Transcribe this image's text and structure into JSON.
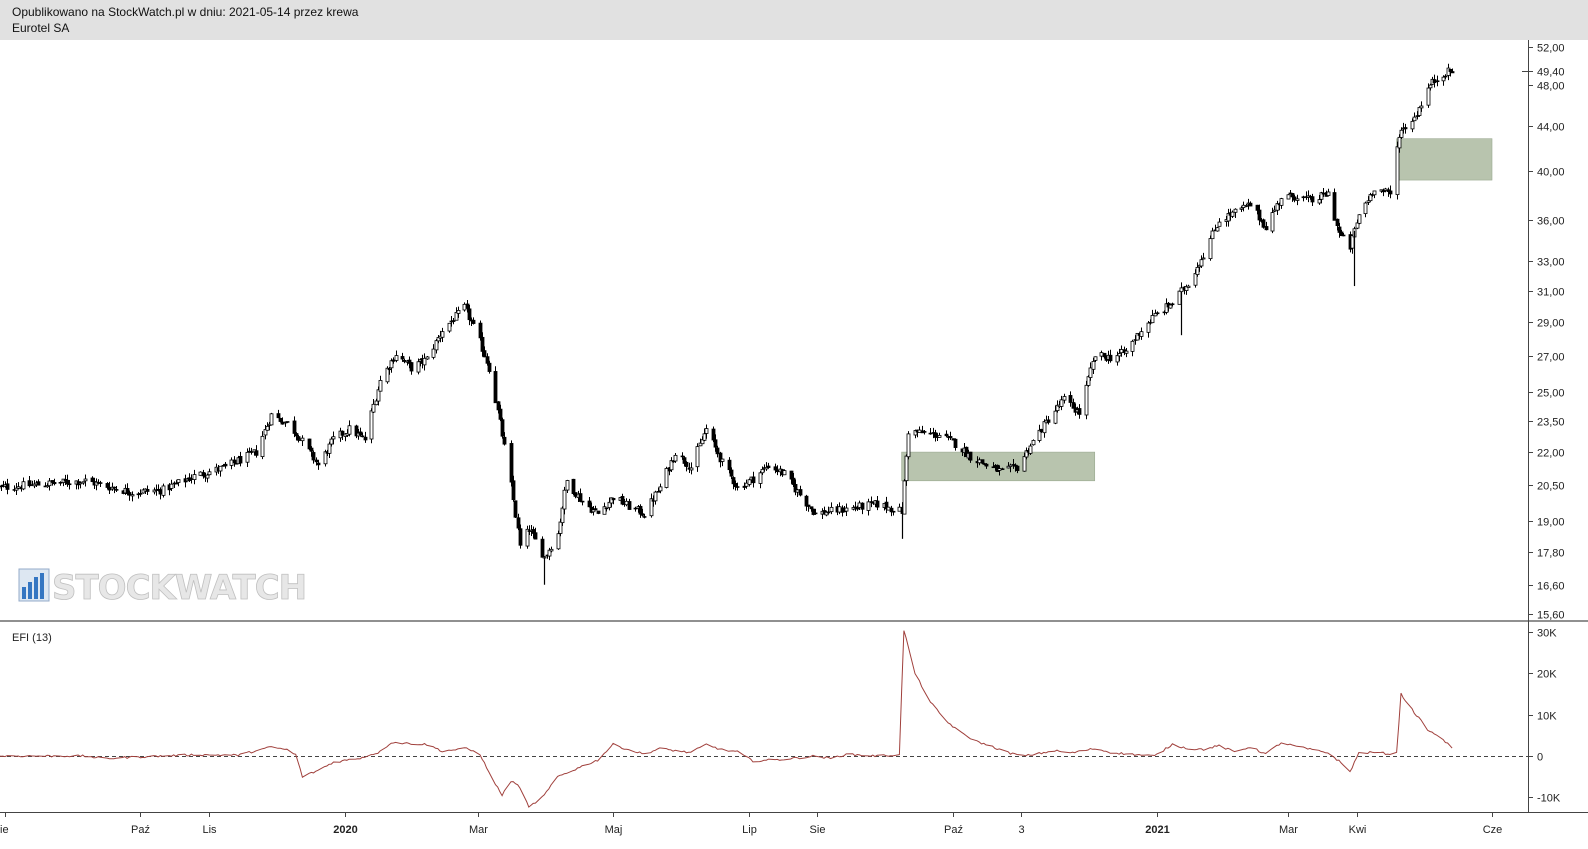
{
  "header": {
    "published": "Opublikowano na StockWatch.pl w dniu: 2021-05-14 przez krewa",
    "instrument": "Eurotel SA"
  },
  "watermark": {
    "text": "STOCKWATCH",
    "icon": "bar-chart-icon"
  },
  "colors": {
    "candle": "#000000",
    "zone": "#b8c4ae",
    "efi_line": "#a0403c",
    "zero_line": "#444444"
  },
  "chart_data": [
    {
      "type": "candlestick",
      "title": "",
      "y_scale": "log",
      "y_ticks": [
        {
          "value": 52.0,
          "label": "52,00"
        },
        {
          "value": 49.4,
          "label": "49,40"
        },
        {
          "value": 48.0,
          "label": "48,00"
        },
        {
          "value": 44.0,
          "label": "44,00"
        },
        {
          "value": 40.0,
          "label": "40,00"
        },
        {
          "value": 36.0,
          "label": "36,00"
        },
        {
          "value": 33.0,
          "label": "33,00"
        },
        {
          "value": 31.0,
          "label": "31,00"
        },
        {
          "value": 29.0,
          "label": "29,00"
        },
        {
          "value": 27.0,
          "label": "27,00"
        },
        {
          "value": 25.0,
          "label": "25,00"
        },
        {
          "value": 23.5,
          "label": "23,50"
        },
        {
          "value": 22.0,
          "label": "22,00"
        },
        {
          "value": 20.5,
          "label": "20,50"
        },
        {
          "value": 19.0,
          "label": "19,00"
        },
        {
          "value": 17.8,
          "label": "17,80"
        },
        {
          "value": 16.6,
          "label": "16,60"
        },
        {
          "value": 15.6,
          "label": "15,60"
        }
      ],
      "last_price_label": "49,40",
      "x_ticks": [
        {
          "date": "2019-08-01",
          "label": "ie"
        },
        {
          "date": "2019-10-01",
          "label": "Paź"
        },
        {
          "date": "2019-11-01",
          "label": "Lis"
        },
        {
          "date": "2020-01-01",
          "label": "2020"
        },
        {
          "date": "2020-03-01",
          "label": "Mar"
        },
        {
          "date": "2020-05-01",
          "label": "Maj"
        },
        {
          "date": "2020-07-01",
          "label": "Lip"
        },
        {
          "date": "2020-08-01",
          "label": "Sie"
        },
        {
          "date": "2020-10-01",
          "label": "Paź"
        },
        {
          "date": "2020-11-01",
          "label": "3"
        },
        {
          "date": "2021-01-01",
          "label": "2021"
        },
        {
          "date": "2021-03-01",
          "label": "Mar"
        },
        {
          "date": "2021-04-01",
          "label": "Kwi"
        },
        {
          "date": "2021-06-01",
          "label": "Cze"
        }
      ],
      "price_path": [
        [
          "2019-07-29",
          20.4
        ],
        [
          "2019-09-06",
          20.7
        ],
        [
          "2019-09-27",
          20.2
        ],
        [
          "2019-10-11",
          20.3
        ],
        [
          "2019-10-25",
          20.9
        ],
        [
          "2019-11-08",
          21.3
        ],
        [
          "2019-11-22",
          22.0
        ],
        [
          "2019-11-29",
          23.8
        ],
        [
          "2019-12-06",
          23.4
        ],
        [
          "2019-12-13",
          22.5
        ],
        [
          "2019-12-20",
          21.4
        ],
        [
          "2019-12-27",
          22.6
        ],
        [
          "2020-01-03",
          23.1
        ],
        [
          "2020-01-10",
          22.6
        ],
        [
          "2020-01-17",
          25.6
        ],
        [
          "2020-01-24",
          27.1
        ],
        [
          "2020-01-31",
          26.3
        ],
        [
          "2020-02-07",
          26.8
        ],
        [
          "2020-02-14",
          28.5
        ],
        [
          "2020-02-24",
          29.9
        ],
        [
          "2020-03-02",
          27.8
        ],
        [
          "2020-03-06",
          26.3
        ],
        [
          "2020-03-11",
          23.4
        ],
        [
          "2020-03-16",
          20.5
        ],
        [
          "2020-03-20",
          18.0
        ],
        [
          "2020-03-24",
          18.7
        ],
        [
          "2020-03-31",
          17.6
        ],
        [
          "2020-04-06",
          18.5
        ],
        [
          "2020-04-10",
          20.7
        ],
        [
          "2020-04-17",
          19.8
        ],
        [
          "2020-04-24",
          19.3
        ],
        [
          "2020-05-01",
          20.0
        ],
        [
          "2020-05-08",
          19.6
        ],
        [
          "2020-05-15",
          19.3
        ],
        [
          "2020-05-22",
          20.4
        ],
        [
          "2020-05-29",
          22.0
        ],
        [
          "2020-06-05",
          21.3
        ],
        [
          "2020-06-12",
          23.1
        ],
        [
          "2020-06-19",
          21.5
        ],
        [
          "2020-06-26",
          20.4
        ],
        [
          "2020-07-03",
          20.8
        ],
        [
          "2020-07-10",
          21.4
        ],
        [
          "2020-07-17",
          21.0
        ],
        [
          "2020-07-24",
          20.1
        ],
        [
          "2020-07-31",
          19.3
        ],
        [
          "2020-08-14",
          19.5
        ],
        [
          "2020-08-28",
          19.7
        ],
        [
          "2020-09-04",
          19.5
        ],
        [
          "2020-09-08",
          19.4
        ],
        [
          "2020-09-11",
          23.0
        ],
        [
          "2020-09-25",
          22.8
        ],
        [
          "2020-10-02",
          22.4
        ],
        [
          "2020-10-09",
          21.8
        ],
        [
          "2020-10-16",
          21.4
        ],
        [
          "2020-10-23",
          21.1
        ],
        [
          "2020-10-30",
          21.3
        ],
        [
          "2020-11-06",
          22.5
        ],
        [
          "2020-11-13",
          23.6
        ],
        [
          "2020-11-20",
          24.6
        ],
        [
          "2020-11-27",
          23.9
        ],
        [
          "2020-12-04",
          27.0
        ],
        [
          "2020-12-11",
          26.9
        ],
        [
          "2020-12-18",
          27.2
        ],
        [
          "2020-12-23",
          28.2
        ],
        [
          "2020-12-31",
          29.4
        ],
        [
          "2021-01-08",
          30.2
        ],
        [
          "2021-01-15",
          31.5
        ],
        [
          "2021-01-22",
          33.5
        ],
        [
          "2021-01-29",
          36.0
        ],
        [
          "2021-02-05",
          36.6
        ],
        [
          "2021-02-12",
          37.2
        ],
        [
          "2021-02-19",
          35.5
        ],
        [
          "2021-02-26",
          37.8
        ],
        [
          "2021-03-05",
          37.9
        ],
        [
          "2021-03-12",
          37.5
        ],
        [
          "2021-03-19",
          38.1
        ],
        [
          "2021-03-24",
          35.0
        ],
        [
          "2021-03-29",
          34.0
        ],
        [
          "2021-04-02",
          36.4
        ],
        [
          "2021-04-09",
          38.6
        ],
        [
          "2021-04-16",
          38.0
        ],
        [
          "2021-04-20",
          43.3
        ],
        [
          "2021-04-27",
          44.8
        ],
        [
          "2021-05-04",
          48.0
        ],
        [
          "2021-05-10",
          49.2
        ],
        [
          "2021-05-14",
          49.4
        ]
      ],
      "spikes": [
        {
          "date": "2020-03-31",
          "low": 16.6
        },
        {
          "date": "2020-09-08",
          "low": 18.3
        },
        {
          "date": "2021-01-12",
          "low": 28.2
        },
        {
          "date": "2021-03-31",
          "low": 31.3
        }
      ],
      "zones": [
        {
          "start": "2020-09-08",
          "end": "2020-12-04",
          "low": 20.7,
          "high": 22.0
        },
        {
          "start": "2021-04-19",
          "end": "2021-06-01",
          "low": 39.2,
          "high": 42.8
        }
      ]
    },
    {
      "type": "line",
      "name": "EFI (13)",
      "y_ticks": [
        {
          "value": 30000,
          "label": "30K"
        },
        {
          "value": 20000,
          "label": "20K"
        },
        {
          "value": 10000,
          "label": "10K"
        },
        {
          "value": 0,
          "label": "0"
        },
        {
          "value": -10000,
          "label": "-10K"
        }
      ],
      "zero_line": "dashed",
      "points": [
        [
          "2019-07-29",
          0
        ],
        [
          "2019-09-05",
          0
        ],
        [
          "2019-09-15",
          -600
        ],
        [
          "2019-09-27",
          -300
        ],
        [
          "2019-10-11",
          0
        ],
        [
          "2019-10-25",
          300
        ],
        [
          "2019-11-14",
          200
        ],
        [
          "2019-11-29",
          2200
        ],
        [
          "2019-12-06",
          1500
        ],
        [
          "2019-12-10",
          300
        ],
        [
          "2019-12-13",
          -5000
        ],
        [
          "2019-12-20",
          -3500
        ],
        [
          "2019-12-27",
          -1500
        ],
        [
          "2020-01-08",
          -500
        ],
        [
          "2020-01-17",
          1000
        ],
        [
          "2020-01-22",
          3300
        ],
        [
          "2020-01-31",
          3000
        ],
        [
          "2020-02-07",
          2800
        ],
        [
          "2020-02-14",
          1200
        ],
        [
          "2020-02-25",
          1800
        ],
        [
          "2020-03-02",
          500
        ],
        [
          "2020-03-06",
          -4000
        ],
        [
          "2020-03-12",
          -9500
        ],
        [
          "2020-03-16",
          -6000
        ],
        [
          "2020-03-20",
          -7500
        ],
        [
          "2020-03-24",
          -12500
        ],
        [
          "2020-03-31",
          -9500
        ],
        [
          "2020-04-06",
          -5000
        ],
        [
          "2020-04-17",
          -2500
        ],
        [
          "2020-04-24",
          -1000
        ],
        [
          "2020-05-01",
          2800
        ],
        [
          "2020-05-08",
          1500
        ],
        [
          "2020-05-15",
          500
        ],
        [
          "2020-05-22",
          1800
        ],
        [
          "2020-06-05",
          800
        ],
        [
          "2020-06-12",
          2800
        ],
        [
          "2020-06-19",
          1500
        ],
        [
          "2020-06-26",
          1000
        ],
        [
          "2020-07-03",
          -1200
        ],
        [
          "2020-07-17",
          -800
        ],
        [
          "2020-07-31",
          0
        ],
        [
          "2020-08-07",
          -600
        ],
        [
          "2020-08-14",
          400
        ],
        [
          "2020-08-28",
          0
        ],
        [
          "2020-09-07",
          300
        ],
        [
          "2020-09-09",
          30500
        ],
        [
          "2020-09-14",
          20000
        ],
        [
          "2020-09-21",
          13000
        ],
        [
          "2020-09-28",
          8500
        ],
        [
          "2020-10-05",
          5500
        ],
        [
          "2020-10-12",
          3500
        ],
        [
          "2020-10-19",
          2200
        ],
        [
          "2020-10-26",
          800
        ],
        [
          "2020-11-02",
          0
        ],
        [
          "2020-11-09",
          600
        ],
        [
          "2020-11-16",
          1300
        ],
        [
          "2020-11-23",
          700
        ],
        [
          "2020-12-04",
          1800
        ],
        [
          "2020-12-11",
          900
        ],
        [
          "2020-12-18",
          500
        ],
        [
          "2020-12-31",
          0
        ],
        [
          "2021-01-08",
          2800
        ],
        [
          "2021-01-15",
          1800
        ],
        [
          "2021-01-22",
          1600
        ],
        [
          "2021-01-29",
          2500
        ],
        [
          "2021-02-05",
          1000
        ],
        [
          "2021-02-12",
          2200
        ],
        [
          "2021-02-19",
          500
        ],
        [
          "2021-02-26",
          3200
        ],
        [
          "2021-03-05",
          2300
        ],
        [
          "2021-03-12",
          1500
        ],
        [
          "2021-03-19",
          800
        ],
        [
          "2021-03-24",
          -1200
        ],
        [
          "2021-03-29",
          -3800
        ],
        [
          "2021-04-02",
          700
        ],
        [
          "2021-04-09",
          900
        ],
        [
          "2021-04-16",
          500
        ],
        [
          "2021-04-19",
          700
        ],
        [
          "2021-04-21",
          15000
        ],
        [
          "2021-04-27",
          10500
        ],
        [
          "2021-05-04",
          5800
        ],
        [
          "2021-05-07",
          5200
        ],
        [
          "2021-05-14",
          2000
        ]
      ]
    }
  ]
}
